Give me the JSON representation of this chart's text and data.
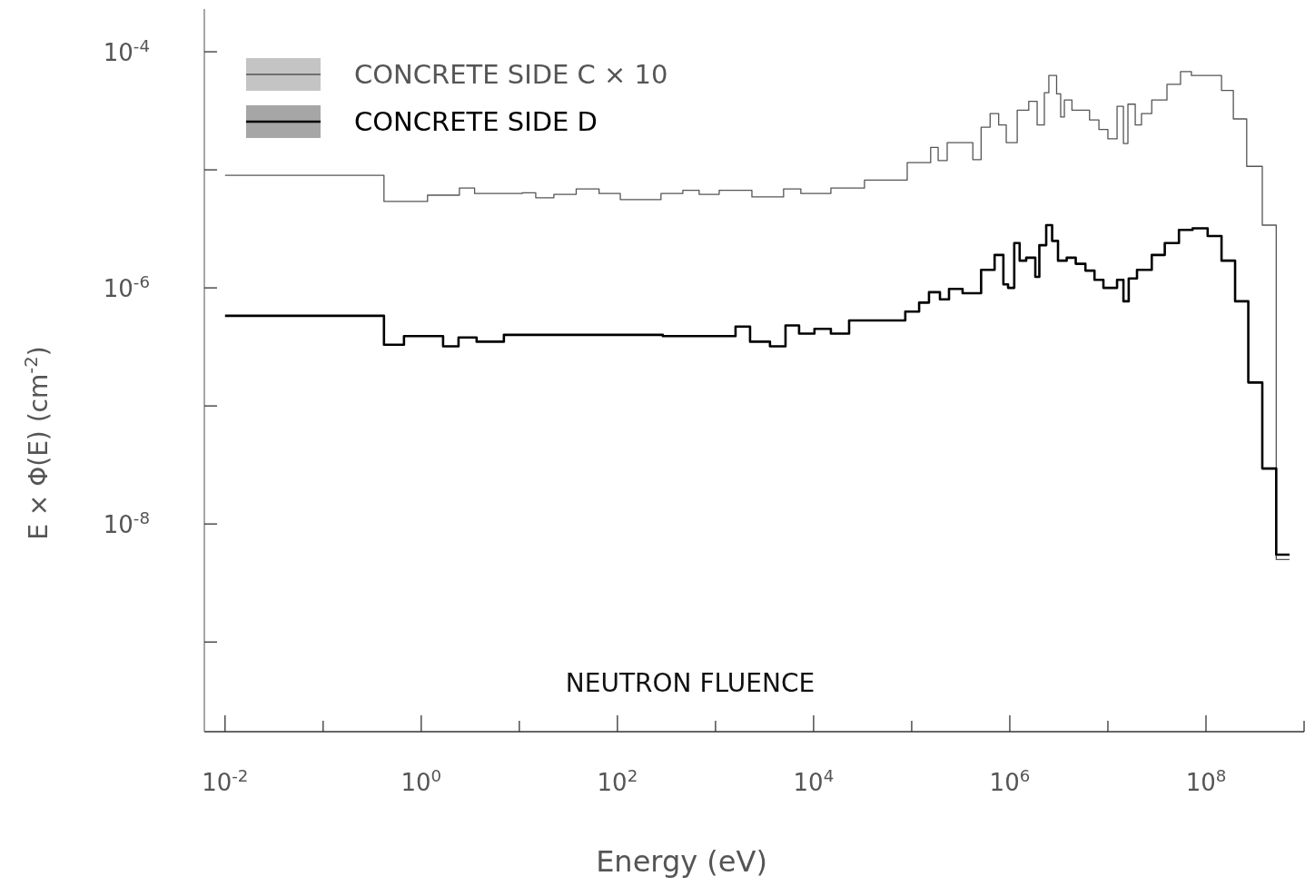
{
  "chart_data": {
    "type": "step",
    "xlabel": "Energy (eV)",
    "ylabel": "E × Φ(E) (cm$^{-2}$)",
    "annotations": [
      "NEUTRON FLUENCE"
    ],
    "log": "xy",
    "grid": false,
    "legend": "top left",
    "marker": "none",
    "line_style": "solid",
    "xlim": [
      0.00615,
      1000000000.0
    ],
    "ylim": [
      1.74e-10,
      0.00023
    ],
    "xticks": [
      {
        "value": 0.01,
        "label": "10$^{-2}$"
      },
      {
        "value": 0.1,
        "label": null
      },
      {
        "value": 1,
        "label": "10$^{0}$"
      },
      {
        "value": 10,
        "label": null
      },
      {
        "value": 100,
        "label": "10$^{2}$"
      },
      {
        "value": 1000,
        "label": null
      },
      {
        "value": 10000,
        "label": "10$^{4}$"
      },
      {
        "value": 100000,
        "label": null
      },
      {
        "value": 1000000,
        "label": "10$^{6}$"
      },
      {
        "value": 10000000,
        "label": null
      },
      {
        "value": 100000000,
        "label": "10$^{8}$"
      },
      {
        "value": 1000000000,
        "label": null
      }
    ],
    "yticks": [
      {
        "value": 1e-09,
        "label": null
      },
      {
        "value": 1e-08,
        "label": "10$^{-8}$"
      },
      {
        "value": 1e-07,
        "label": null
      },
      {
        "value": 1e-06,
        "label": "10$^{-6}$"
      },
      {
        "value": 1e-05,
        "label": null
      },
      {
        "value": 0.0001,
        "label": "10$^{-4}$"
      }
    ],
    "series": [
      {
        "name": "CONCRETE SIDE C × 10",
        "color": "#555555",
        "x": [
          0.01,
          0.417,
          1.16,
          2.45,
          3.5,
          10.7,
          14.7,
          22.5,
          38,
          65,
          107,
          278,
          464,
          681,
          1090,
          2350,
          4940,
          7410,
          15000,
          33000,
          90000,
          156000,
          186000,
          230000,
          420000,
          510000,
          630000,
          770000,
          920000,
          1190000,
          1560000,
          1900000,
          2250000,
          2500000,
          3000000,
          3300000,
          3600000,
          4300000,
          6500000,
          8100000,
          10000000,
          12400000,
          14400000,
          16000000,
          19000000,
          22000000,
          28000000,
          40000000,
          55000000,
          71000000,
          144000000,
          190000000,
          260000000,
          375000000,
          520000000,
          710000000
        ],
        "values": [
          9e-06,
          5.4e-06,
          6.1e-06,
          7e-06,
          6.3e-06,
          6.4e-06,
          5.8e-06,
          6.2e-06,
          6.9e-06,
          6.3e-06,
          5.6e-06,
          6.3e-06,
          6.7e-06,
          6.2e-06,
          6.7e-06,
          5.9e-06,
          6.9e-06,
          6.3e-06,
          7e-06,
          8.2e-06,
          1.15e-05,
          1.55e-05,
          1.2e-05,
          1.7e-05,
          1.22e-05,
          2.3e-05,
          3e-05,
          2.4e-05,
          1.7e-05,
          3.2e-05,
          3.8e-05,
          2.4e-05,
          4.5e-05,
          6.3e-05,
          4.4e-05,
          2.8e-05,
          3.9e-05,
          3.2e-05,
          2.65e-05,
          2.2e-05,
          1.83e-05,
          3.45e-05,
          1.67e-05,
          3.6e-05,
          2.4e-05,
          3e-05,
          3.9e-05,
          5.3e-05,
          6.8e-05,
          6.3e-05,
          4.7e-05,
          2.7e-05,
          1.07e-05,
          3.4e-06,
          5e-09,
          5e-09
        ]
      },
      {
        "name": "CONCRETE SIDE D",
        "color": "#000000",
        "x": [
          0.01,
          0.417,
          0.667,
          1.67,
          2.4,
          3.67,
          6.96,
          290,
          1600,
          2250,
          3590,
          5170,
          7110,
          10200,
          15000,
          23000,
          86000,
          119000,
          150000,
          194000,
          240000,
          330000,
          510000,
          700000,
          860000,
          960000,
          1110000,
          1260000,
          1470000,
          1820000,
          2000000,
          2350000,
          2700000,
          3100000,
          3800000,
          4700000,
          5900000,
          7300000,
          9000000,
          12400000,
          14400000,
          16300000,
          19800000,
          28000000,
          38000000,
          53000000,
          73000000,
          104000000,
          144000000,
          198000000,
          270000000,
          375000000,
          520000000,
          710000000
        ],
        "values": [
          5.8e-07,
          3.3e-07,
          3.9e-07,
          3.2e-07,
          3.8e-07,
          3.5e-07,
          4e-07,
          3.9e-07,
          4.7e-07,
          3.5e-07,
          3.2e-07,
          4.8e-07,
          4.1e-07,
          4.5e-07,
          4.1e-07,
          5.3e-07,
          6.3e-07,
          7.5e-07,
          9.2e-07,
          8e-07,
          9.8e-07,
          9e-07,
          1.42e-06,
          1.9e-06,
          1.07e-06,
          1e-06,
          2.4e-06,
          1.7e-06,
          1.8e-06,
          1.24e-06,
          2.3e-06,
          3.4e-06,
          2.5e-06,
          1.7e-06,
          1.8e-06,
          1.6e-06,
          1.4e-06,
          1.17e-06,
          1e-06,
          1.17e-06,
          7.7e-07,
          1.2e-06,
          1.42e-06,
          1.9e-06,
          2.4e-06,
          3.1e-06,
          3.2e-06,
          2.75e-06,
          1.7e-06,
          7.7e-07,
          1.58e-07,
          2.95e-08,
          5.5e-09,
          5.5e-09
        ]
      }
    ]
  }
}
